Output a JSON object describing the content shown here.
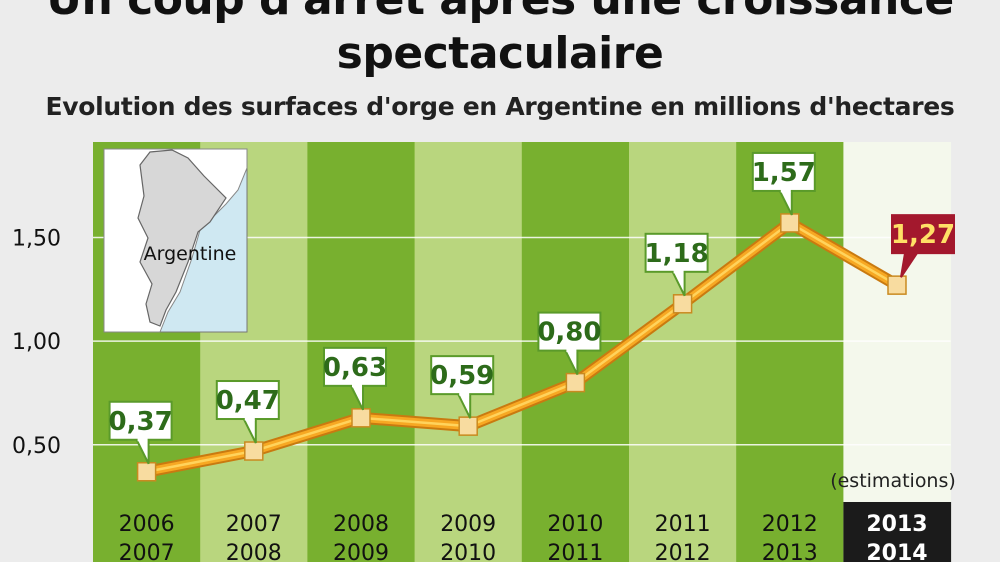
{
  "title_line1": "Un coup d'arrêt après une croissance",
  "title_line2": "spectaculaire",
  "subtitle": "Evolution des surfaces d'orge en Argentine en millions d'hectares",
  "map_label": "Argentine",
  "estimate_note": "(estimations)",
  "colors": {
    "green_dark": "#78b02f",
    "green_light": "#b9d67e",
    "line": "#f7a823",
    "marker": "#f8dca0",
    "label_border": "#5a9a2a",
    "highlight": "#a3182d",
    "highlight_text": "#ffe066"
  },
  "chart_data": {
    "type": "line",
    "title": "Un coup d'arrêt après une croissance spectaculaire",
    "subtitle": "Evolution des surfaces d'orge en Argentine en millions d'hectares",
    "categories": [
      [
        "2006",
        "2007"
      ],
      [
        "2007",
        "2008"
      ],
      [
        "2008",
        "2009"
      ],
      [
        "2009",
        "2010"
      ],
      [
        "2010",
        "2011"
      ],
      [
        "2011",
        "2012"
      ],
      [
        "2012",
        "2013"
      ],
      [
        "2013",
        "2014"
      ]
    ],
    "values": [
      0.37,
      0.47,
      0.63,
      0.59,
      0.8,
      1.18,
      1.57,
      1.27
    ],
    "value_labels": [
      "0,37",
      "0,47",
      "0,63",
      "0,59",
      "0,80",
      "1,18",
      "1,57",
      "1,27"
    ],
    "yticks": [
      0.5,
      1.0,
      1.5
    ],
    "ytick_labels": [
      "0,50",
      "1,00",
      "1,50"
    ],
    "ylim": [
      0.2,
      1.97
    ],
    "estimated_index": 7,
    "grid": true,
    "xlabel": "",
    "ylabel": ""
  }
}
